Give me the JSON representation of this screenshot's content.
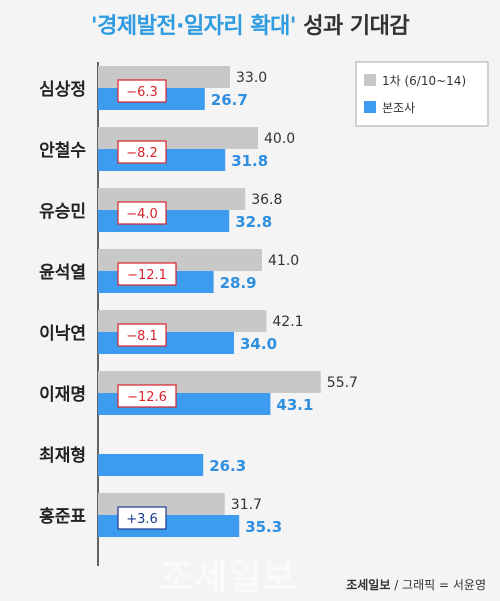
{
  "title": {
    "highlight": "'경제발전·일자리 확대'",
    "rest": "성과 기대감"
  },
  "legend": [
    {
      "label": "1차 (6/10~14)",
      "color": "#c8c8c8"
    },
    {
      "label": "본조사",
      "color": "#3d9bf0"
    }
  ],
  "chart_data": {
    "type": "bar",
    "orientation": "horizontal",
    "title": "'경제발전·일자리 확대' 성과 기대감",
    "categories": [
      "심상정",
      "안철수",
      "유승민",
      "윤석열",
      "이낙연",
      "이재명",
      "최재형",
      "홍준표"
    ],
    "series": [
      {
        "name": "1차 (6/10~14)",
        "color": "#c8c8c8",
        "values": [
          33.0,
          40.0,
          36.8,
          41.0,
          42.1,
          55.7,
          null,
          31.7
        ]
      },
      {
        "name": "본조사",
        "color": "#3d9bf0",
        "values": [
          26.7,
          31.8,
          32.8,
          28.9,
          34.0,
          43.1,
          26.3,
          35.3
        ]
      }
    ],
    "value_labels": {
      "1차 (6/10~14)": [
        "33.0",
        "40.0",
        "36.8",
        "41.0",
        "42.1",
        "55.7",
        "",
        "31.7"
      ],
      "본조사": [
        "26.7",
        "31.8",
        "32.8",
        "28.9",
        "34.0",
        "43.1",
        "26.3",
        "35.3"
      ]
    },
    "changes": [
      "−6.3",
      "−8.2",
      "−4.0",
      "−12.1",
      "−8.1",
      "−12.6",
      "",
      "+3.6"
    ],
    "change_colors": {
      "negative": "#d9232b",
      "positive": "#1f3a8f"
    },
    "legend_position": "top-right",
    "grid": false
  },
  "footer": {
    "brand": "조세일보",
    "credit": "/ 그래픽 = 서윤영"
  },
  "watermark": "조세일보"
}
